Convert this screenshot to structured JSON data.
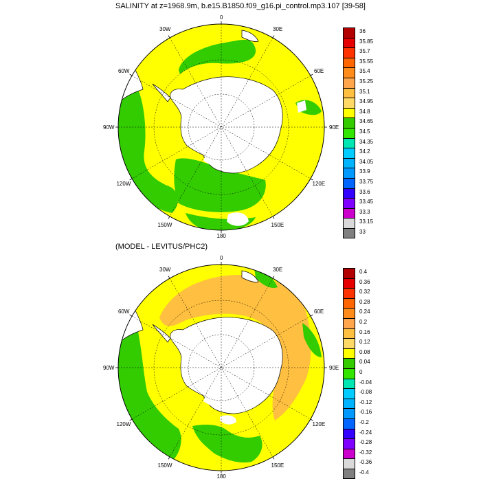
{
  "top_panel": {
    "title": "SALINITY at z=1968.9m, b.e15.B1850.f09_g16.pi_control.mp3.107 [39-58]",
    "lon_labels": [
      "0",
      "30E",
      "60E",
      "90E",
      "120E",
      "150E",
      "180",
      "150W",
      "120W",
      "90W",
      "60W",
      "30W"
    ],
    "colorbar": {
      "labels": [
        "36",
        "35.85",
        "35.7",
        "35.55",
        "35.4",
        "35.25",
        "35.1",
        "34.95",
        "34.8",
        "34.65",
        "34.5",
        "34.35",
        "34.2",
        "34.05",
        "33.9",
        "33.75",
        "33.6",
        "33.45",
        "33.3",
        "33.15",
        "33"
      ],
      "colors": [
        "#b30000",
        "#e60000",
        "#ff3300",
        "#ff6600",
        "#ff8c1a",
        "#ffa64d",
        "#ffbf40",
        "#ffd966",
        "#ffff00",
        "#33cc00",
        "#33e600",
        "#00e6b3",
        "#00ccff",
        "#00b3ff",
        "#0099ff",
        "#0066ff",
        "#3300ff",
        "#8000ff",
        "#cc00cc",
        "#d9d9d9",
        "#808080"
      ]
    }
  },
  "bottom_panel": {
    "title": "(MODEL - LEVITUS/PHC2)",
    "lon_labels": [
      "0",
      "30E",
      "60E",
      "90E",
      "120E",
      "150E",
      "180",
      "150W",
      "120W",
      "90W",
      "60W",
      "30W"
    ],
    "colorbar": {
      "labels": [
        "0.4",
        "0.36",
        "0.32",
        "0.28",
        "0.24",
        "0.2",
        "0.16",
        "0.12",
        "0.08",
        "0.04",
        "0",
        "-0.04",
        "-0.08",
        "-0.12",
        "-0.16",
        "-0.2",
        "-0.24",
        "-0.28",
        "-0.32",
        "-0.36",
        "-0.4"
      ],
      "colors": [
        "#b30000",
        "#e60000",
        "#ff3300",
        "#ff6600",
        "#ff8c1a",
        "#ffa64d",
        "#ffbf40",
        "#ffd966",
        "#ffff00",
        "#33cc00",
        "#33e600",
        "#00e6b3",
        "#00ccff",
        "#00b3ff",
        "#0099ff",
        "#0066ff",
        "#3300ff",
        "#8000ff",
        "#cc00cc",
        "#d9d9d9",
        "#808080"
      ]
    }
  }
}
